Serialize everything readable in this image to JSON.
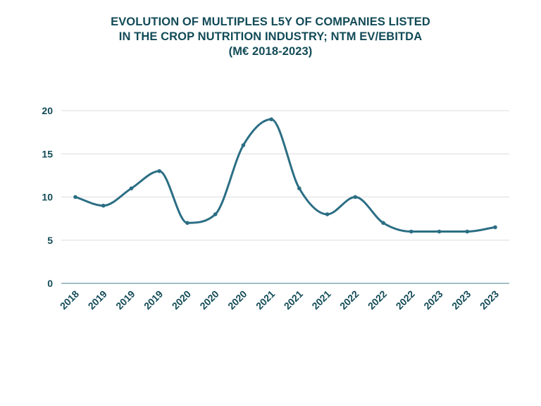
{
  "title_lines": [
    "EVOLUTION OF MULTIPLES L5Y OF COMPANIES LISTED",
    "IN THE CROP NUTRITION INDUSTRY; NTM EV/EBITDA",
    "(M€ 2018-2023)"
  ],
  "colors": {
    "title": "#124B57",
    "line": "#2B6E84",
    "grid": "#DCDCDC",
    "axis": "#4A7F8C",
    "ticks": "#124B57"
  },
  "chart_data": {
    "type": "line",
    "title": "EVOLUTION OF MULTIPLES L5Y OF COMPANIES LISTED IN THE CROP NUTRITION INDUSTRY; NTM EV/EBITDA (M€ 2018-2023)",
    "xlabel": "",
    "ylabel": "",
    "categories": [
      "2018",
      "2019",
      "2019",
      "2019",
      "2020",
      "2020",
      "2020",
      "2021",
      "2021",
      "2021",
      "2022",
      "2022",
      "2022",
      "2023",
      "2023",
      "2023"
    ],
    "series": [
      {
        "values": [
          10,
          9,
          11,
          13,
          7,
          8,
          16,
          19,
          11,
          8,
          10,
          7,
          6,
          6,
          6,
          6.5
        ]
      }
    ],
    "ylim": [
      0,
      20
    ],
    "yticks": [
      0,
      5,
      10,
      15,
      20
    ],
    "grid": true,
    "smooth": true,
    "markers": true,
    "legend": "none"
  }
}
